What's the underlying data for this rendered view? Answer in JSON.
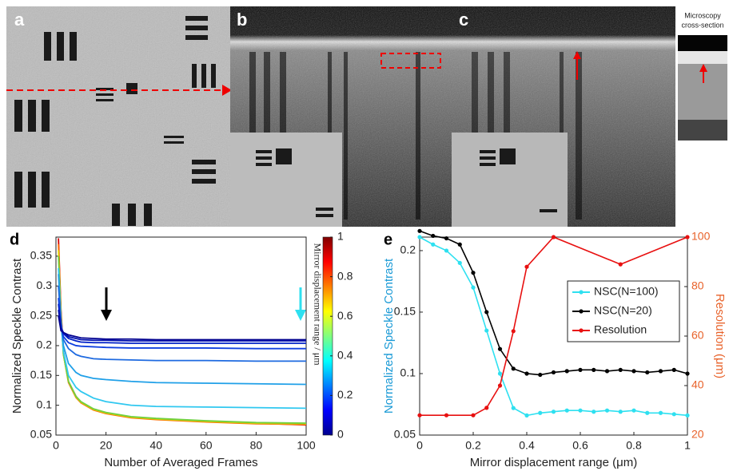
{
  "panels": {
    "labels": [
      "a",
      "b",
      "c"
    ],
    "microscopy_label": [
      "Microscopy",
      "cross-section"
    ]
  },
  "chart_data": [
    {
      "type": "line",
      "panel_label": "d",
      "xlabel": "Number of Averaged Frames",
      "ylabel": "Normalized Speckle Contrast",
      "x": [
        1,
        2,
        3,
        5,
        8,
        10,
        15,
        20,
        30,
        40,
        60,
        80,
        100
      ],
      "xlim": [
        0,
        100
      ],
      "xticks": [
        0,
        20,
        40,
        60,
        80,
        100
      ],
      "ylim": [
        0.05,
        0.382
      ],
      "yticks": [
        0.05,
        0.1,
        0.15,
        0.2,
        0.25,
        0.3,
        0.35
      ],
      "series": [
        {
          "color": "#d40000",
          "values": [
            0.38,
            0.26,
            0.19,
            0.14,
            0.115,
            0.105,
            0.093,
            0.087,
            0.08,
            0.077,
            0.073,
            0.07,
            0.067
          ]
        },
        {
          "color": "#ff6a00",
          "values": [
            0.37,
            0.25,
            0.185,
            0.138,
            0.113,
            0.104,
            0.092,
            0.086,
            0.079,
            0.076,
            0.072,
            0.069,
            0.068
          ]
        },
        {
          "color": "#e0d000",
          "values": [
            0.36,
            0.25,
            0.185,
            0.14,
            0.114,
            0.105,
            0.093,
            0.087,
            0.08,
            0.077,
            0.073,
            0.07,
            0.069
          ]
        },
        {
          "color": "#70d040",
          "values": [
            0.35,
            0.25,
            0.185,
            0.14,
            0.115,
            0.106,
            0.094,
            0.088,
            0.081,
            0.078,
            0.074,
            0.071,
            0.07
          ]
        },
        {
          "color": "#30c8f0",
          "values": [
            0.33,
            0.24,
            0.19,
            0.15,
            0.13,
            0.123,
            0.112,
            0.106,
            0.1,
            0.098,
            0.097,
            0.096,
            0.095
          ]
        },
        {
          "color": "#20a0e8",
          "values": [
            0.32,
            0.24,
            0.2,
            0.17,
            0.155,
            0.15,
            0.145,
            0.143,
            0.14,
            0.138,
            0.137,
            0.136,
            0.135
          ]
        },
        {
          "color": "#1e6ae0",
          "values": [
            0.3,
            0.24,
            0.21,
            0.195,
            0.185,
            0.182,
            0.178,
            0.177,
            0.176,
            0.175,
            0.175,
            0.174,
            0.174
          ]
        },
        {
          "color": "#1040e0",
          "values": [
            0.28,
            0.23,
            0.215,
            0.205,
            0.2,
            0.199,
            0.198,
            0.197,
            0.196,
            0.196,
            0.196,
            0.195,
            0.195
          ]
        },
        {
          "color": "#0020c8",
          "values": [
            0.27,
            0.23,
            0.22,
            0.212,
            0.208,
            0.206,
            0.205,
            0.205,
            0.204,
            0.204,
            0.204,
            0.204,
            0.204
          ]
        },
        {
          "color": "#0010b0",
          "values": [
            0.26,
            0.23,
            0.222,
            0.215,
            0.212,
            0.21,
            0.209,
            0.209,
            0.208,
            0.208,
            0.208,
            0.208,
            0.208
          ]
        },
        {
          "color": "#00008f",
          "values": [
            0.25,
            0.225,
            0.222,
            0.218,
            0.215,
            0.213,
            0.212,
            0.211,
            0.211,
            0.21,
            0.21,
            0.21,
            0.21
          ]
        }
      ],
      "colorbar": {
        "label": "Mirror displacement range / μm",
        "lim": [
          0,
          1
        ],
        "ticks": [
          0,
          0.2,
          0.4,
          0.6,
          0.8,
          1
        ]
      }
    },
    {
      "type": "line",
      "panel_label": "e",
      "xlabel": "Mirror displacement range (μm)",
      "ylabel": "Normalized Speckle Contrast",
      "y2label": "Resolution (μm)",
      "ylabel_color": "#1a9ad6",
      "y2label_color": "#e8622a",
      "xlim": [
        0,
        1
      ],
      "xticks": [
        0,
        0.2,
        0.4,
        0.6,
        0.8,
        1
      ],
      "ylim": [
        0.05,
        0.211
      ],
      "yticks": [
        0.05,
        0.1,
        0.15,
        0.2
      ],
      "y2lim": [
        20,
        100
      ],
      "y2ticks": [
        20,
        40,
        60,
        80,
        100
      ],
      "legend": "upper-right",
      "series": [
        {
          "name": "NSC(N=100)",
          "color": "#2ee0f0",
          "x": [
            0,
            0.05,
            0.1,
            0.15,
            0.2,
            0.25,
            0.3,
            0.35,
            0.4,
            0.45,
            0.5,
            0.55,
            0.6,
            0.65,
            0.7,
            0.75,
            0.8,
            0.85,
            0.9,
            0.95,
            1
          ],
          "values": [
            0.211,
            0.205,
            0.2,
            0.19,
            0.17,
            0.135,
            0.1,
            0.072,
            0.066,
            0.068,
            0.069,
            0.07,
            0.07,
            0.069,
            0.07,
            0.069,
            0.07,
            0.068,
            0.068,
            0.067,
            0.066
          ]
        },
        {
          "name": "NSC(N=20)",
          "color": "#000000",
          "x": [
            0,
            0.05,
            0.1,
            0.15,
            0.2,
            0.25,
            0.3,
            0.35,
            0.4,
            0.45,
            0.5,
            0.55,
            0.6,
            0.65,
            0.7,
            0.75,
            0.8,
            0.85,
            0.9,
            0.95,
            1
          ],
          "values": [
            0.216,
            0.212,
            0.21,
            0.205,
            0.182,
            0.15,
            0.12,
            0.104,
            0.1,
            0.099,
            0.101,
            0.102,
            0.103,
            0.103,
            0.102,
            0.103,
            0.102,
            0.101,
            0.102,
            0.103,
            0.1
          ]
        },
        {
          "name": "Resolution",
          "color": "#e81010",
          "axis": "y2",
          "x": [
            0,
            0.1,
            0.2,
            0.25,
            0.3,
            0.35,
            0.4,
            0.5,
            0.75,
            1
          ],
          "values": [
            28,
            28,
            28,
            31,
            40,
            62,
            88,
            100,
            89,
            100
          ]
        }
      ]
    }
  ]
}
